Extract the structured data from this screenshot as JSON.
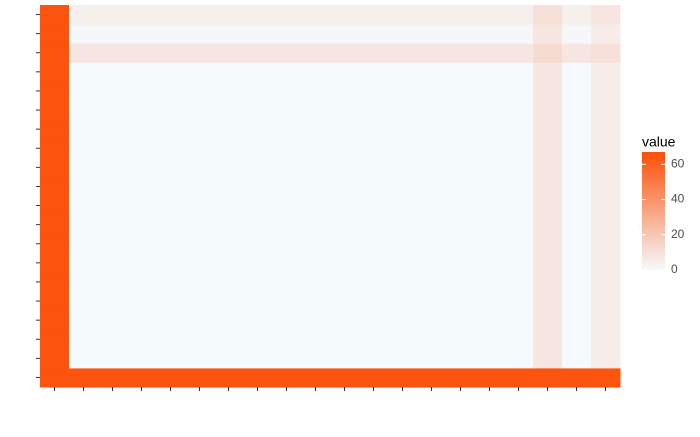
{
  "chart_data": {
    "type": "heatmap",
    "x_categories": [
      null,
      null,
      null,
      null,
      null,
      null,
      null,
      null,
      null,
      null,
      null,
      null,
      null,
      null,
      null,
      null,
      null,
      null,
      null,
      null
    ],
    "y_categories": [
      null,
      null,
      null,
      null,
      null,
      null,
      null,
      null,
      null,
      null,
      null,
      null,
      null,
      null,
      null,
      null,
      null,
      null,
      null,
      null
    ],
    "values": [
      [
        65,
        65,
        65,
        65,
        65,
        65,
        65,
        65,
        65,
        65,
        65,
        65,
        65,
        65,
        65,
        65,
        65,
        65,
        65,
        65
      ],
      [
        65,
        0,
        0,
        0,
        0,
        0,
        0,
        0,
        0,
        0,
        0,
        0,
        0,
        0,
        0,
        0,
        0,
        8,
        0,
        5
      ],
      [
        65,
        0,
        0,
        0,
        0,
        0,
        0,
        0,
        0,
        0,
        0,
        0,
        0,
        0,
        0,
        0,
        0,
        8,
        0,
        5
      ],
      [
        65,
        0,
        0,
        0,
        0,
        0,
        0,
        0,
        0,
        0,
        0,
        0,
        0,
        0,
        0,
        0,
        0,
        8,
        0,
        5
      ],
      [
        65,
        0,
        0,
        0,
        0,
        0,
        0,
        0,
        0,
        0,
        0,
        0,
        0,
        0,
        0,
        0,
        0,
        8,
        0,
        5
      ],
      [
        65,
        0,
        0,
        0,
        0,
        0,
        0,
        0,
        0,
        0,
        0,
        0,
        0,
        0,
        0,
        0,
        0,
        8,
        0,
        5
      ],
      [
        65,
        0,
        0,
        0,
        0,
        0,
        0,
        0,
        0,
        0,
        0,
        0,
        0,
        0,
        0,
        0,
        0,
        8,
        0,
        5
      ],
      [
        65,
        0,
        0,
        0,
        0,
        0,
        0,
        0,
        0,
        0,
        0,
        0,
        0,
        0,
        0,
        0,
        0,
        8,
        0,
        5
      ],
      [
        65,
        0,
        0,
        0,
        0,
        0,
        0,
        0,
        0,
        0,
        0,
        0,
        0,
        0,
        0,
        0,
        0,
        8,
        0,
        5
      ],
      [
        65,
        0,
        0,
        0,
        0,
        0,
        0,
        0,
        0,
        0,
        0,
        0,
        0,
        0,
        0,
        0,
        0,
        8,
        0,
        5
      ],
      [
        65,
        0,
        0,
        0,
        0,
        0,
        0,
        0,
        0,
        0,
        0,
        0,
        0,
        0,
        0,
        0,
        0,
        8,
        0,
        5
      ],
      [
        65,
        0,
        0,
        0,
        0,
        0,
        0,
        0,
        0,
        0,
        0,
        0,
        0,
        0,
        0,
        0,
        0,
        8,
        0,
        5
      ],
      [
        65,
        0,
        0,
        0,
        0,
        0,
        0,
        0,
        0,
        0,
        0,
        0,
        0,
        0,
        0,
        0,
        0,
        8,
        0,
        5
      ],
      [
        65,
        0,
        0,
        0,
        0,
        0,
        0,
        0,
        0,
        0,
        0,
        0,
        0,
        0,
        0,
        0,
        0,
        8,
        0,
        5
      ],
      [
        65,
        0,
        0,
        0,
        0,
        0,
        0,
        0,
        0,
        0,
        0,
        0,
        0,
        0,
        0,
        0,
        0,
        8,
        0,
        5
      ],
      [
        65,
        0,
        0,
        0,
        0,
        0,
        0,
        0,
        0,
        0,
        0,
        0,
        0,
        0,
        0,
        0,
        0,
        8,
        0,
        5
      ],
      [
        65,
        0,
        0,
        0,
        0,
        0,
        0,
        0,
        0,
        0,
        0,
        0,
        0,
        0,
        0,
        0,
        0,
        8,
        0,
        5
      ],
      [
        65,
        8,
        8,
        8,
        8,
        8,
        8,
        8,
        8,
        8,
        8,
        8,
        8,
        8,
        8,
        8,
        8,
        12,
        8,
        10
      ],
      [
        65,
        1,
        1,
        1,
        1,
        1,
        1,
        1,
        1,
        1,
        1,
        1,
        1,
        1,
        1,
        1,
        1,
        8,
        1,
        5
      ],
      [
        65,
        4,
        4,
        4,
        4,
        4,
        4,
        4,
        4,
        4,
        4,
        4,
        4,
        4,
        4,
        4,
        4,
        10,
        4,
        8
      ]
    ],
    "low_color": "#f5fafd",
    "high_color": "#fc4e07",
    "legend_title": "value",
    "legend_lim": [
      0,
      67
    ],
    "legend_ticks": [
      0,
      20,
      40,
      60
    ]
  }
}
